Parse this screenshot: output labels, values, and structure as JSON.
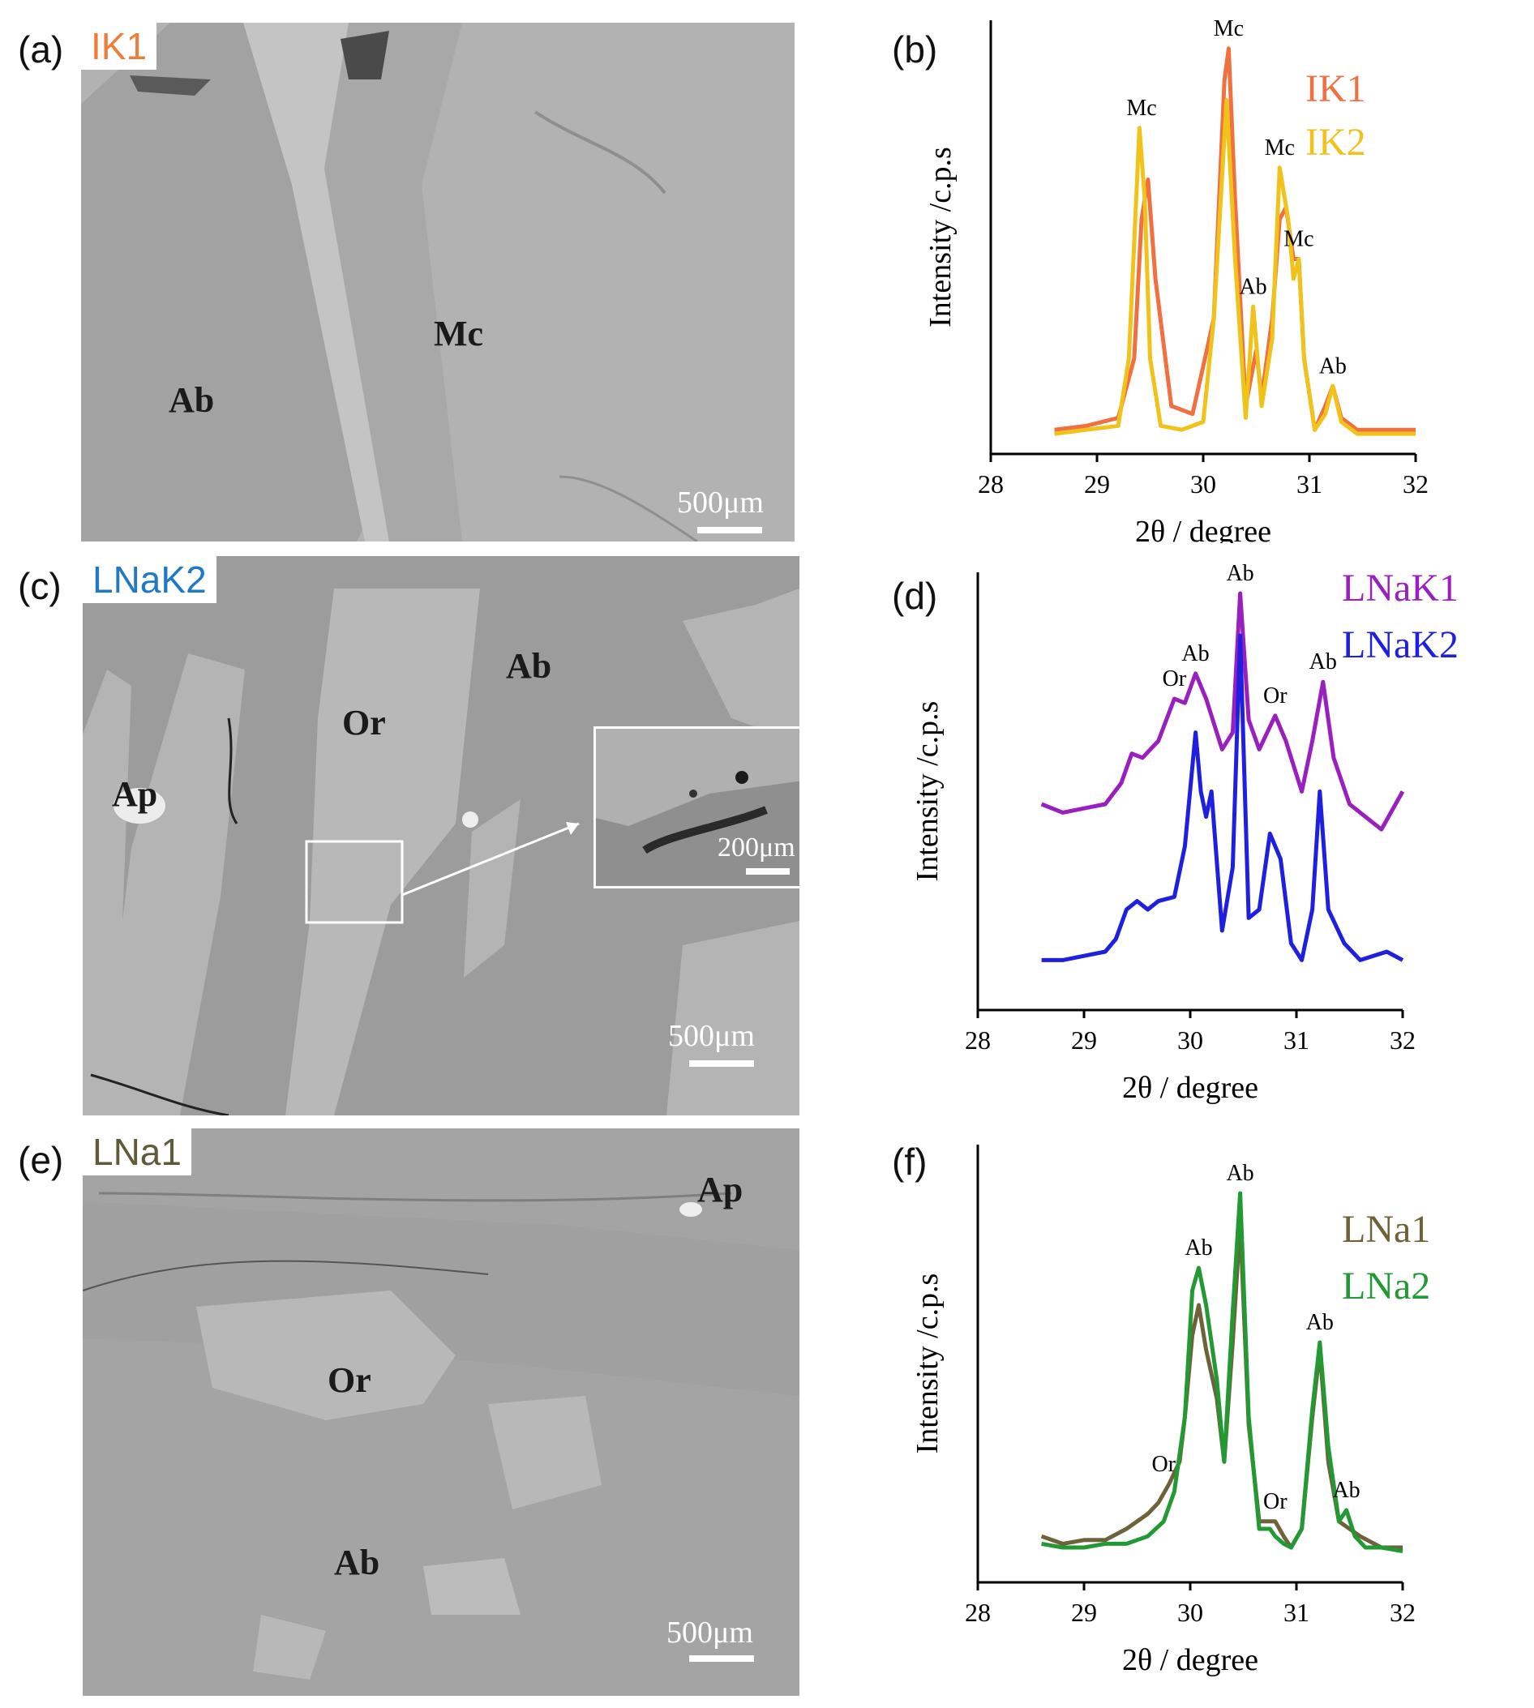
{
  "panels": [
    {
      "letter": "(a)",
      "sample": "IK1",
      "sample_color": "#f07c3a",
      "phases": [
        "Ab",
        "Mc"
      ],
      "scale": "500μm"
    },
    {
      "letter": "(c)",
      "sample": "LNaK2",
      "sample_color": "#1f78c8",
      "phases": [
        "Ab",
        "Or",
        "Ap"
      ],
      "scale": "500μm",
      "inset_scale": "200μm"
    },
    {
      "letter": "(e)",
      "sample": "LNa1",
      "sample_color": "#5e5a3a",
      "phases": [
        "Ap",
        "Or",
        "Ab"
      ],
      "scale": "500μm"
    }
  ],
  "chart_data": [
    {
      "panel": "(b)",
      "type": "line",
      "xlabel": "2θ / degree",
      "ylabel": "Intensity /c.p.s",
      "xlim": [
        28,
        32
      ],
      "xticks": [
        28,
        29,
        30,
        31,
        32
      ],
      "series": [
        {
          "name": "IK1",
          "color": "#f07040",
          "x": [
            28.6,
            28.9,
            29.2,
            29.35,
            29.42,
            29.48,
            29.55,
            29.7,
            29.9,
            30.1,
            30.2,
            30.24,
            30.3,
            30.4,
            30.45,
            30.5,
            30.55,
            30.65,
            30.72,
            30.78,
            30.85,
            30.9,
            30.95,
            31.05,
            31.15,
            31.22,
            31.3,
            31.45,
            31.7,
            32.0
          ],
          "y": [
            0.02,
            0.03,
            0.05,
            0.2,
            0.55,
            0.65,
            0.4,
            0.08,
            0.06,
            0.3,
            0.9,
            0.98,
            0.6,
            0.08,
            0.15,
            0.22,
            0.1,
            0.3,
            0.55,
            0.58,
            0.45,
            0.45,
            0.2,
            0.02,
            0.08,
            0.13,
            0.05,
            0.02,
            0.02,
            0.02
          ]
        },
        {
          "name": "IK2",
          "color": "#f0c21a",
          "x": [
            28.6,
            28.9,
            29.2,
            29.3,
            29.4,
            29.45,
            29.5,
            29.6,
            29.8,
            30.0,
            30.1,
            30.22,
            30.3,
            30.4,
            30.47,
            30.55,
            30.65,
            30.72,
            30.8,
            30.85,
            30.9,
            30.95,
            31.05,
            31.15,
            31.22,
            31.3,
            31.45,
            31.7,
            32.0
          ],
          "y": [
            0.01,
            0.02,
            0.03,
            0.2,
            0.78,
            0.6,
            0.2,
            0.03,
            0.02,
            0.04,
            0.3,
            0.85,
            0.45,
            0.05,
            0.33,
            0.08,
            0.25,
            0.68,
            0.55,
            0.4,
            0.45,
            0.2,
            0.02,
            0.06,
            0.13,
            0.04,
            0.01,
            0.01,
            0.01
          ]
        }
      ],
      "annotations": [
        {
          "text": "Mc",
          "x": 29.42,
          "y": 0.78
        },
        {
          "text": "Mc",
          "x": 30.24,
          "y": 0.98
        },
        {
          "text": "Mc",
          "x": 30.72,
          "y": 0.68
        },
        {
          "text": "Ab",
          "x": 30.47,
          "y": 0.33
        },
        {
          "text": "Mc",
          "x": 30.9,
          "y": 0.45
        },
        {
          "text": "Ab",
          "x": 31.22,
          "y": 0.13
        }
      ]
    },
    {
      "panel": "(d)",
      "type": "line",
      "xlabel": "2θ / degree",
      "ylabel": "Intensity /c.p.s",
      "xlim": [
        28,
        32
      ],
      "xticks": [
        28,
        29,
        30,
        31,
        32
      ],
      "series": [
        {
          "name": "LNaK1",
          "color": "#9a1fbf",
          "x": [
            28.6,
            28.8,
            29.0,
            29.2,
            29.35,
            29.45,
            29.55,
            29.7,
            29.85,
            29.95,
            30.05,
            30.15,
            30.3,
            30.4,
            30.47,
            30.55,
            30.65,
            30.8,
            30.9,
            31.05,
            31.15,
            31.25,
            31.35,
            31.5,
            31.6,
            31.8,
            32.0
          ],
          "y": [
            0.45,
            0.43,
            0.44,
            0.45,
            0.5,
            0.57,
            0.56,
            0.6,
            0.7,
            0.69,
            0.76,
            0.7,
            0.58,
            0.62,
            0.95,
            0.65,
            0.58,
            0.66,
            0.6,
            0.48,
            0.6,
            0.74,
            0.56,
            0.45,
            0.43,
            0.39,
            0.48
          ]
        },
        {
          "name": "LNaK2",
          "color": "#1f1fe0",
          "x": [
            28.6,
            28.8,
            29.0,
            29.2,
            29.3,
            29.4,
            29.5,
            29.6,
            29.7,
            29.85,
            29.95,
            30.05,
            30.1,
            30.15,
            30.2,
            30.3,
            30.4,
            30.47,
            30.55,
            30.65,
            30.75,
            30.85,
            30.95,
            31.05,
            31.15,
            31.22,
            31.3,
            31.45,
            31.6,
            31.85,
            32.0
          ],
          "y": [
            0.08,
            0.08,
            0.09,
            0.1,
            0.13,
            0.2,
            0.22,
            0.2,
            0.22,
            0.23,
            0.35,
            0.62,
            0.48,
            0.42,
            0.48,
            0.15,
            0.3,
            0.85,
            0.18,
            0.2,
            0.38,
            0.32,
            0.12,
            0.08,
            0.2,
            0.48,
            0.2,
            0.12,
            0.08,
            0.1,
            0.08
          ]
        }
      ],
      "annotations": [
        {
          "text": "Ab",
          "x": 30.47,
          "y": 0.95
        },
        {
          "text": "Ab",
          "x": 30.05,
          "y": 0.76
        },
        {
          "text": "Or",
          "x": 29.85,
          "y": 0.7
        },
        {
          "text": "Or",
          "x": 30.8,
          "y": 0.66
        },
        {
          "text": "Ab",
          "x": 31.25,
          "y": 0.74
        }
      ]
    },
    {
      "panel": "(f)",
      "type": "line",
      "xlabel": "2θ / degree",
      "ylabel": "Intensity /c.p.s",
      "xlim": [
        28,
        32
      ],
      "xticks": [
        28,
        29,
        30,
        31,
        32
      ],
      "series": [
        {
          "name": "LNa1",
          "color": "#6e623a",
          "x": [
            28.6,
            28.8,
            29.0,
            29.2,
            29.4,
            29.5,
            29.6,
            29.7,
            29.8,
            29.9,
            29.95,
            30.02,
            30.08,
            30.15,
            30.25,
            30.32,
            30.4,
            30.47,
            30.55,
            30.65,
            30.75,
            30.8,
            30.88,
            30.95,
            31.05,
            31.15,
            31.22,
            31.3,
            31.4,
            31.5,
            31.6,
            31.8,
            32.0
          ],
          "y": [
            0.08,
            0.06,
            0.07,
            0.07,
            0.1,
            0.12,
            0.14,
            0.17,
            0.22,
            0.28,
            0.4,
            0.62,
            0.7,
            0.58,
            0.45,
            0.28,
            0.6,
            0.92,
            0.38,
            0.12,
            0.12,
            0.12,
            0.08,
            0.05,
            0.1,
            0.4,
            0.58,
            0.28,
            0.12,
            0.1,
            0.08,
            0.05,
            0.05
          ]
        },
        {
          "name": "LNa2",
          "color": "#229933",
          "x": [
            28.6,
            28.8,
            29.0,
            29.2,
            29.4,
            29.6,
            29.75,
            29.85,
            29.95,
            30.02,
            30.08,
            30.15,
            30.25,
            30.32,
            30.4,
            30.47,
            30.55,
            30.65,
            30.75,
            30.8,
            30.88,
            30.95,
            31.05,
            31.15,
            31.22,
            31.3,
            31.4,
            31.47,
            31.55,
            31.65,
            31.8,
            32.0
          ],
          "y": [
            0.06,
            0.05,
            0.05,
            0.06,
            0.06,
            0.08,
            0.12,
            0.2,
            0.4,
            0.74,
            0.8,
            0.7,
            0.5,
            0.28,
            0.68,
            1.0,
            0.4,
            0.1,
            0.1,
            0.08,
            0.06,
            0.05,
            0.1,
            0.42,
            0.6,
            0.32,
            0.12,
            0.15,
            0.08,
            0.05,
            0.05,
            0.04
          ]
        }
      ],
      "annotations": [
        {
          "text": "Ab",
          "x": 30.47,
          "y": 1.0
        },
        {
          "text": "Ab",
          "x": 30.08,
          "y": 0.8
        },
        {
          "text": "Ab",
          "x": 31.22,
          "y": 0.6
        },
        {
          "text": "Or",
          "x": 29.75,
          "y": 0.22
        },
        {
          "text": "Or",
          "x": 30.8,
          "y": 0.12
        },
        {
          "text": "Ab",
          "x": 31.47,
          "y": 0.15
        }
      ]
    }
  ]
}
